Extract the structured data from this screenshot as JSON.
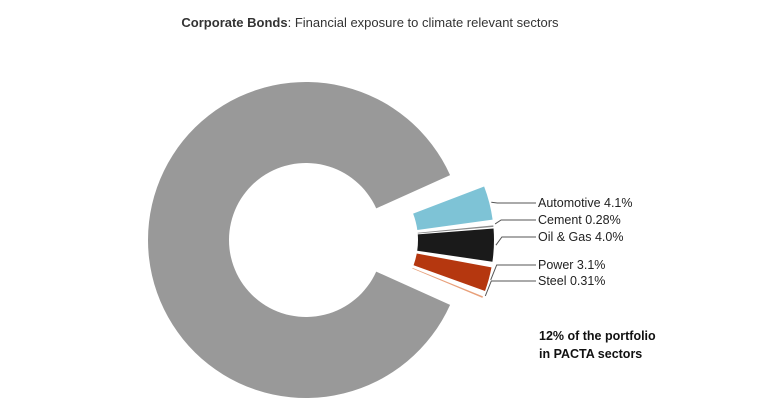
{
  "chart_data": {
    "type": "pie",
    "title_bold": "Corporate Bonds",
    "title_rest": ": Financial exposure to climate relevant sectors",
    "slices": [
      {
        "label": "Automotive 4.1%",
        "value": 4.1,
        "color": "#7ec3d6"
      },
      {
        "label": "Cement 0.28%",
        "value": 0.28,
        "color": "#8a8a8a"
      },
      {
        "label": "Oil & Gas 4.0%",
        "value": 4.0,
        "color": "#1a1a1a"
      },
      {
        "label": "Power 3.1%",
        "value": 3.1,
        "color": "#b5370f"
      },
      {
        "label": "Steel 0.31%",
        "value": 0.31,
        "color": "#e8a07a"
      },
      {
        "label": "",
        "value": 88.21,
        "color": "#999999"
      }
    ],
    "annotation_line1": "12% of the portfolio",
    "annotation_line2": "in PACTA sectors"
  }
}
